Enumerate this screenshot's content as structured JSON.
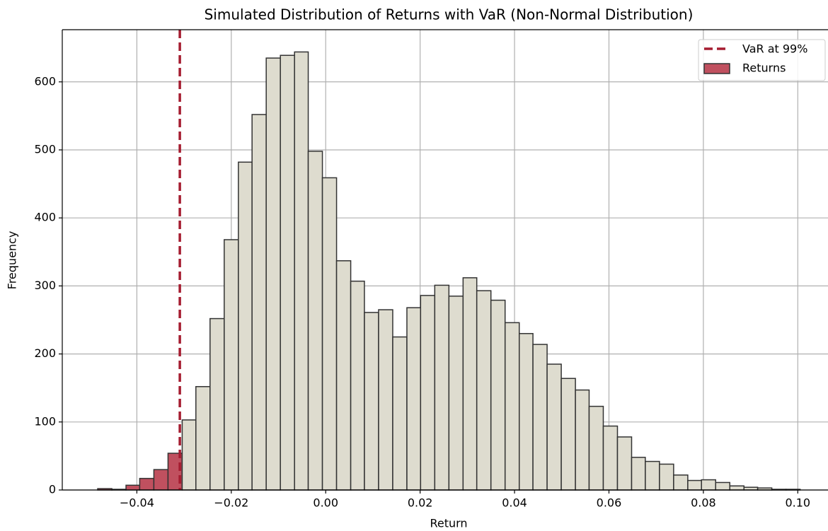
{
  "chart_data": {
    "type": "histogram",
    "title": "Simulated Distribution of Returns with VaR (Non-Normal Distribution)",
    "x_label": "Return",
    "y_label": "Frequency",
    "bins": [
      -0.0483,
      -0.0453,
      -0.0423,
      -0.0394,
      -0.0364,
      -0.0334,
      -0.0304,
      -0.0275,
      -0.0245,
      -0.0215,
      -0.0185,
      -0.0156,
      -0.0126,
      -0.0096,
      -0.0066,
      -0.0037,
      -0.0007,
      0.0023,
      0.0053,
      0.0082,
      0.0112,
      0.0142,
      0.0172,
      0.0201,
      0.0231,
      0.0261,
      0.0291,
      0.032,
      0.035,
      0.038,
      0.041,
      0.0439,
      0.0469,
      0.0499,
      0.0529,
      0.0558,
      0.0588,
      0.0618,
      0.0648,
      0.0677,
      0.0707,
      0.0737,
      0.0767,
      0.0796,
      0.0826,
      0.0856,
      0.0886,
      0.0915,
      0.0945,
      0.0975,
      0.1005
    ],
    "series": [
      {
        "name": "Returns",
        "color": "#dedccf",
        "tail_color": "#c0505f",
        "values": [
          2,
          1,
          7,
          17,
          30,
          54,
          103,
          152,
          252,
          368,
          482,
          552,
          635,
          639,
          644,
          498,
          459,
          337,
          307,
          261,
          265,
          225,
          268,
          286,
          301,
          285,
          312,
          293,
          279,
          246,
          230,
          214,
          185,
          164,
          147,
          123,
          94,
          78,
          48,
          42,
          38,
          22,
          14,
          15,
          11,
          6,
          4,
          3,
          1,
          1
        ]
      }
    ],
    "var_line": {
      "value": -0.0309,
      "label": "VaR at 99%",
      "color": "#a51c30"
    },
    "xlim": [
      -0.0558,
      0.1064
    ],
    "ylim": [
      0,
      676.7
    ],
    "xticks": [
      {
        "value": -0.04,
        "label": "−0.04"
      },
      {
        "value": -0.02,
        "label": "−0.02"
      },
      {
        "value": 0,
        "label": "0.00"
      },
      {
        "value": 0.02,
        "label": "0.02"
      },
      {
        "value": 0.04,
        "label": "0.04"
      },
      {
        "value": 0.06,
        "label": "0.06"
      },
      {
        "value": 0.08,
        "label": "0.08"
      },
      {
        "value": 0.1,
        "label": "0.10"
      }
    ],
    "yticks": [
      0,
      100,
      200,
      300,
      400,
      500,
      600
    ],
    "grid": true,
    "legend": "upper right"
  }
}
